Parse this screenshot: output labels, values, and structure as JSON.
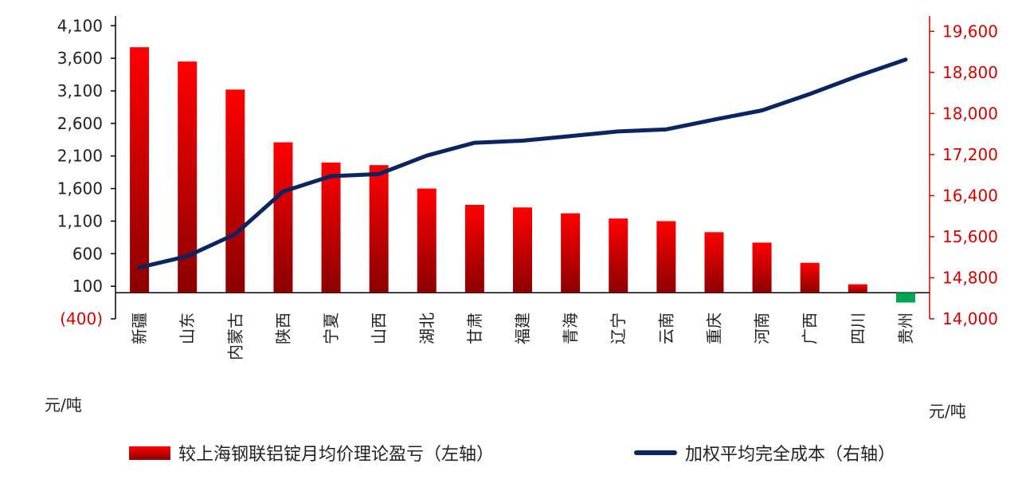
{
  "left_unit": "元/吨",
  "right_unit": "元/吨",
  "legend": {
    "bar_label": "较上海钢联铝锭月均价理论盈亏（左轴）",
    "line_label": "加权平均完全成本（右轴）"
  },
  "colors": {
    "bar_top": "#ff0000",
    "bar_bottom": "#8b0000",
    "negative_bar": "#00a651",
    "line": "#0b2560",
    "right_axis": "#d40000",
    "negative_tick": "#d40000",
    "axis": "#000000"
  },
  "chart_data": {
    "type": "bar",
    "categories": [
      "新疆",
      "山东",
      "内蒙古",
      "陕西",
      "宁夏",
      "山西",
      "湖北",
      "甘肃",
      "福建",
      "青海",
      "辽宁",
      "云南",
      "重庆",
      "河南",
      "广西",
      "四川",
      "贵州"
    ],
    "left_axis": {
      "ylim": [
        -400,
        4250
      ],
      "ticks": [
        -400,
        100,
        600,
        1100,
        1600,
        2100,
        2600,
        3100,
        3600,
        4100
      ],
      "tick_labels": [
        "(400)",
        "100",
        "600",
        "1,100",
        "1,600",
        "2,100",
        "2,600",
        "3,100",
        "3,600",
        "4,100"
      ]
    },
    "right_axis": {
      "ylim": [
        14000,
        19900
      ],
      "ticks": [
        14000,
        14800,
        15600,
        16400,
        17200,
        18000,
        18800,
        19600
      ],
      "tick_labels": [
        "14,000",
        "14,800",
        "15,600",
        "16,400",
        "17,200",
        "18,000",
        "18,800",
        "19,600"
      ]
    },
    "series": [
      {
        "name": "较上海钢联铝锭月均价理论盈亏（左轴）",
        "type": "bar",
        "axis": "left",
        "values": [
          3770,
          3550,
          3120,
          2310,
          2000,
          1960,
          1600,
          1350,
          1310,
          1220,
          1140,
          1100,
          930,
          770,
          460,
          130,
          -150
        ]
      },
      {
        "name": "加权平均完全成本（右轴）",
        "type": "line",
        "axis": "right",
        "values": [
          15000,
          15220,
          15650,
          16480,
          16780,
          16820,
          17180,
          17430,
          17470,
          17560,
          17650,
          17690,
          17880,
          18060,
          18380,
          18730,
          19050
        ]
      }
    ],
    "grid": false
  }
}
